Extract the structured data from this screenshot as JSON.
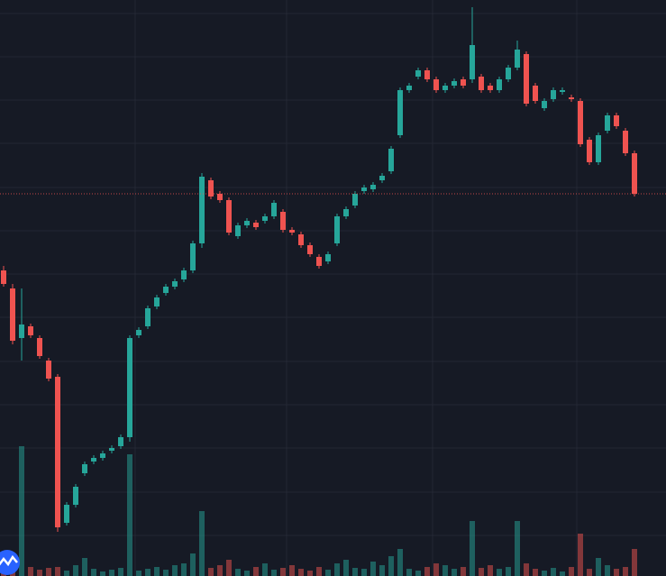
{
  "chart_data": {
    "type": "candlestick",
    "open": [
      339,
      319,
      264,
      277,
      264,
      239,
      221,
      59,
      79,
      114,
      127,
      131,
      139,
      144,
      154,
      267,
      277,
      299,
      314,
      321,
      329,
      339,
      369,
      439,
      424,
      417,
      377,
      389,
      392,
      394,
      399,
      404,
      384,
      379,
      367,
      354,
      349,
      369,
      399,
      411,
      427,
      429,
      439,
      449,
      489,
      539,
      554,
      561,
      551,
      539,
      544,
      551,
      551,
      554,
      544,
      539,
      551,
      564,
      579,
      544,
      519,
      529,
      537,
      531,
      527,
      484,
      459,
      494,
      511,
      494,
      469
    ],
    "high": [
      344,
      324,
      319,
      280,
      267,
      242,
      224,
      82,
      102,
      127,
      134,
      139,
      145,
      157,
      267,
      276,
      300,
      312,
      324,
      330,
      342,
      372,
      447,
      442,
      427,
      420,
      392,
      397,
      395,
      402,
      417,
      407,
      387,
      382,
      370,
      357,
      360,
      402,
      410,
      427,
      434,
      437,
      447,
      477,
      542,
      547,
      564,
      564,
      554,
      547,
      552,
      554,
      631,
      557,
      547,
      554,
      567,
      594,
      582,
      547,
      530,
      542,
      542,
      534,
      530,
      487,
      492,
      514,
      514,
      497,
      472
    ],
    "low": [
      321,
      257,
      239,
      264,
      241,
      216,
      49,
      56,
      76,
      111,
      124,
      128,
      136,
      141,
      149,
      264,
      274,
      296,
      311,
      318,
      326,
      336,
      364,
      418,
      414,
      378,
      374,
      386,
      384,
      391,
      396,
      381,
      378,
      364,
      354,
      341,
      346,
      366,
      396,
      408,
      424,
      426,
      436,
      446,
      486,
      536,
      551,
      548,
      536,
      536,
      541,
      541,
      547,
      536,
      536,
      536,
      548,
      561,
      521,
      524,
      516,
      526,
      534,
      526,
      476,
      456,
      456,
      491,
      496,
      466,
      421
    ],
    "close": [
      324,
      261,
      279,
      267,
      244,
      219,
      54,
      79,
      99,
      124,
      131,
      136,
      142,
      154,
      264,
      273,
      297,
      309,
      321,
      327,
      339,
      369,
      443,
      421,
      417,
      381,
      389,
      394,
      387,
      399,
      414,
      384,
      381,
      367,
      357,
      344,
      357,
      399,
      407,
      424,
      431,
      434,
      444,
      474,
      539,
      544,
      561,
      551,
      539,
      544,
      549,
      544,
      589,
      539,
      539,
      551,
      564,
      584,
      524,
      527,
      527,
      539,
      539,
      529,
      479,
      459,
      489,
      511,
      499,
      469,
      424
    ],
    "volume": [
      8,
      6,
      144,
      10,
      7,
      9,
      10,
      6,
      12,
      20,
      8,
      5,
      7,
      9,
      135,
      6,
      8,
      10,
      7,
      12,
      14,
      25,
      72,
      9,
      12,
      18,
      8,
      6,
      10,
      14,
      7,
      9,
      12,
      8,
      6,
      10,
      7,
      14,
      18,
      9,
      8,
      16,
      12,
      22,
      30,
      8,
      6,
      10,
      14,
      12,
      8,
      10,
      61,
      9,
      12,
      8,
      10,
      61,
      14,
      8,
      6,
      9,
      5,
      10,
      47,
      8,
      20,
      12,
      8,
      10,
      30
    ],
    "up_color": "#26a69a",
    "down_color": "#ef5350",
    "ylim": [
      0,
      639
    ],
    "yticks": [
      45,
      93,
      142,
      190,
      238,
      287,
      335,
      383,
      431,
      480,
      528,
      576,
      624
    ],
    "grid": true
  }
}
